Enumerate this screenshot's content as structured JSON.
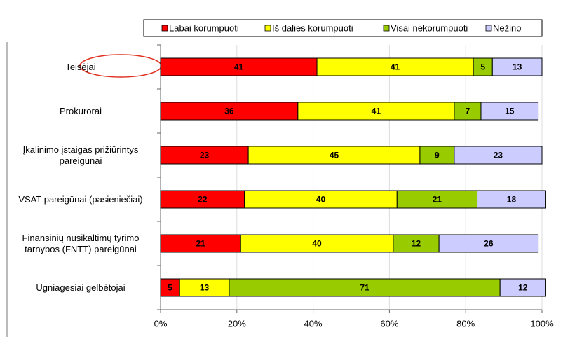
{
  "chart_data": {
    "type": "stacked-barh",
    "categories": [
      "Teisėjai",
      "Prokurorai",
      "Įkalinimo įstaigas prižiūrintys pareigūnai",
      "VSAT pareigūnai (pasieniečiai)",
      "Finansinių nusikaltimų tyrimo tarnybos (FNTT) pareigūnai",
      "Ugniagesiai gelbėtojai"
    ],
    "series": [
      {
        "name": "Labai korumpuoti",
        "color": "#ff0000",
        "values": [
          41,
          36,
          23,
          22,
          21,
          5
        ]
      },
      {
        "name": "Iš dalies korumpuoti",
        "color": "#ffff00",
        "values": [
          41,
          41,
          45,
          40,
          40,
          13
        ]
      },
      {
        "name": "Visai nekorumpuoti",
        "color": "#99cc00",
        "values": [
          5,
          7,
          9,
          21,
          12,
          71
        ]
      },
      {
        "name": "Nežino",
        "color": "#ccccff",
        "values": [
          13,
          15,
          23,
          18,
          26,
          12
        ]
      }
    ],
    "xlim": [
      0,
      100
    ],
    "xticks": [
      {
        "value": 0,
        "label": "0%"
      },
      {
        "value": 20,
        "label": "20%"
      },
      {
        "value": 40,
        "label": "40%"
      },
      {
        "value": 60,
        "label": "60%"
      },
      {
        "value": 80,
        "label": "80%"
      },
      {
        "value": 100,
        "label": "100%"
      }
    ],
    "grid": true,
    "legend": "top"
  }
}
